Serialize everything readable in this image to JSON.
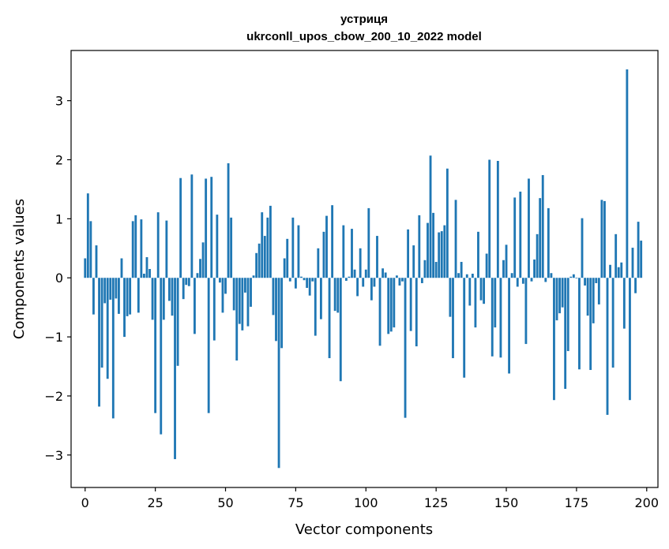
{
  "chart_data": {
    "type": "bar",
    "title": "устриця",
    "subtitle": "ukrconll_upos_cbow_200_10_2022 model",
    "xlabel": "Vector components",
    "ylabel": "Components values",
    "xlim": [
      -5,
      204
    ],
    "ylim": [
      -3.55,
      3.85
    ],
    "xticks": [
      0,
      25,
      50,
      75,
      100,
      125,
      150,
      175,
      200
    ],
    "xtick_labels": [
      "0",
      "25",
      "50",
      "75",
      "100",
      "125",
      "150",
      "175",
      "200"
    ],
    "yticks": [
      -3,
      -2,
      -1,
      0,
      1,
      2,
      3
    ],
    "ytick_labels": [
      "−3",
      "−2",
      "−1",
      "0",
      "1",
      "2",
      "3"
    ],
    "bar_color": "#1f77b4",
    "values": [
      0.33,
      1.43,
      0.96,
      -0.62,
      0.55,
      -2.18,
      -1.52,
      -0.43,
      -1.71,
      -0.37,
      -2.38,
      -0.35,
      -0.61,
      0.33,
      -1.0,
      -0.65,
      -0.62,
      0.96,
      1.06,
      -0.59,
      0.99,
      0.07,
      0.35,
      0.15,
      -0.71,
      -2.29,
      1.11,
      -2.65,
      -0.71,
      0.97,
      -0.39,
      -0.64,
      -3.07,
      -1.49,
      1.69,
      -0.36,
      -0.12,
      -0.14,
      1.75,
      -0.95,
      0.08,
      0.32,
      0.6,
      1.68,
      -2.29,
      1.71,
      -1.06,
      1.07,
      -0.08,
      -0.59,
      -0.27,
      1.94,
      1.02,
      -0.55,
      -1.4,
      -0.78,
      -0.89,
      -0.25,
      -0.82,
      -0.49,
      0.04,
      0.42,
      0.58,
      1.11,
      0.71,
      1.02,
      1.22,
      -0.63,
      -1.07,
      -3.22,
      -1.19,
      0.33,
      0.66,
      -0.06,
      1.02,
      -0.18,
      0.89,
      0.02,
      -0.04,
      -0.17,
      -0.3,
      -0.06,
      -0.98,
      0.5,
      -0.7,
      0.78,
      1.05,
      -1.36,
      1.23,
      -0.56,
      -0.59,
      -1.75,
      0.89,
      -0.05,
      0.02,
      0.83,
      0.14,
      -0.31,
      0.5,
      -0.15,
      0.14,
      1.18,
      -0.38,
      -0.15,
      0.71,
      -1.15,
      0.16,
      0.09,
      -0.95,
      -0.91,
      -0.84,
      0.04,
      -0.13,
      -0.06,
      -2.37,
      0.82,
      -0.9,
      0.55,
      -1.16,
      1.06,
      -0.09,
      0.3,
      0.93,
      2.07,
      1.1,
      0.27,
      0.77,
      0.79,
      0.89,
      1.85,
      -0.66,
      -1.36,
      1.32,
      0.08,
      0.27,
      -1.69,
      0.06,
      -0.47,
      0.07,
      -0.84,
      0.78,
      -0.38,
      -0.44,
      0.41,
      2.0,
      -1.33,
      -0.84,
      1.98,
      -1.35,
      0.3,
      0.56,
      -1.62,
      0.08,
      1.36,
      -0.15,
      1.46,
      -0.1,
      -1.12,
      1.68,
      -0.06,
      0.31,
      0.74,
      1.35,
      1.74,
      -0.07,
      1.18,
      0.08,
      -2.07,
      -0.72,
      -0.6,
      -0.5,
      -1.88,
      -1.24,
      0.02,
      0.06,
      -0.01,
      -1.55,
      1.01,
      -0.13,
      -0.64,
      -1.56,
      -0.77,
      -0.09,
      -0.45,
      1.32,
      1.3,
      -2.32,
      0.22,
      -1.52,
      0.74,
      0.18,
      0.26,
      -0.86,
      3.53,
      -2.07,
      0.51,
      -0.26,
      0.95,
      0.63
    ]
  }
}
